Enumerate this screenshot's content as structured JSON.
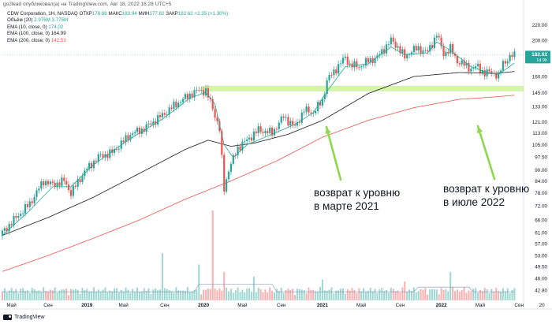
{
  "published": "go2lead опубликовал(а) на TradingView.com, Авг 18, 2022 16:28 UTC+5",
  "legend": {
    "title": "CDW Corporation, 1Н, NASDAQ",
    "ohlc": [
      {
        "k": "ОТКР",
        "v": "178.88"
      },
      {
        "k": "МАКС",
        "v": "183.94"
      },
      {
        "k": "МИН",
        "v": "177.82"
      },
      {
        "k": "ЗАКР",
        "v": "182.62"
      }
    ],
    "change": "+2.35 (+1.30%)",
    "volume": {
      "label": "Объём (20)",
      "v1": "2.976M",
      "v2": "3.775M"
    },
    "ema": [
      {
        "label": "EMA (10, close, 0)",
        "value": "174.02",
        "color": "#26a69a"
      },
      {
        "label": "EMA (100, close, 0)",
        "value": "164.99",
        "color": "#131722"
      },
      {
        "label": "EMA (200, close, 0)",
        "value": "142.53",
        "color": "#ef5350"
      }
    ]
  },
  "annotations": [
    {
      "text": "возврат к уровню\nв марте 2021"
    },
    {
      "text": "возврат к уровню\nв июле 2022"
    }
  ],
  "footer": "TradingView",
  "price_badge": {
    "price": "182.62",
    "sub": "1d 9h"
  },
  "colors": {
    "up": "#26a69a",
    "down": "#ef5350",
    "ema10": "#26a69a",
    "ema100": "#131722",
    "ema200": "#ef5350",
    "zone": "#ccf29a",
    "arrow": "#8ed84a",
    "volume": "#e8eef5"
  },
  "chart_data": {
    "type": "candlestick",
    "scale": "log",
    "ylim": [
      42.8,
      242
    ],
    "y_ticks": [
      "220.00",
      "200.00",
      "182.62",
      "160.00",
      "145.00",
      "133.00",
      "121.00",
      "113.00",
      "105.00",
      "97.50",
      "90.00",
      "84.00",
      "78.00",
      "72.00",
      "66.00",
      "61.00",
      "57.00",
      "53.00",
      "49.50",
      "46.00",
      "42.80"
    ],
    "x_ticks": [
      "Май",
      "Сен",
      "2019",
      "Май",
      "Сен",
      "2020",
      "Май",
      "Сен",
      "2021",
      "Май",
      "Сен",
      "2022",
      "Май",
      "Сен",
      "20"
    ],
    "x_range": [
      0,
      228
    ],
    "x_tick_weeks": [
      4,
      20,
      37,
      53,
      71,
      88,
      105,
      122,
      140,
      157,
      174,
      192,
      209,
      226,
      236
    ],
    "support_zone": {
      "low": 146,
      "high": 151,
      "from_week": 88,
      "to_week": 228
    },
    "close_anchors": [
      [
        0,
        61
      ],
      [
        4,
        65
      ],
      [
        12,
        73
      ],
      [
        18,
        84
      ],
      [
        22,
        82
      ],
      [
        27,
        84
      ],
      [
        30,
        78
      ],
      [
        36,
        89
      ],
      [
        42,
        97.5
      ],
      [
        48,
        100
      ],
      [
        56,
        112
      ],
      [
        62,
        116
      ],
      [
        70,
        126
      ],
      [
        76,
        135
      ],
      [
        82,
        143
      ],
      [
        86,
        147
      ],
      [
        89,
        146
      ],
      [
        92,
        132
      ],
      [
        95,
        115
      ],
      [
        97,
        80
      ],
      [
        99,
        90
      ],
      [
        103,
        103
      ],
      [
        107,
        108
      ],
      [
        112,
        115
      ],
      [
        118,
        113
      ],
      [
        123,
        125
      ],
      [
        128,
        117
      ],
      [
        132,
        130
      ],
      [
        136,
        128
      ],
      [
        140,
        138
      ],
      [
        142,
        156
      ],
      [
        146,
        168
      ],
      [
        150,
        180
      ],
      [
        152,
        172
      ],
      [
        156,
        170
      ],
      [
        160,
        176
      ],
      [
        164,
        180
      ],
      [
        167,
        190
      ],
      [
        170,
        200
      ],
      [
        173,
        192
      ],
      [
        176,
        180
      ],
      [
        179,
        188
      ],
      [
        182,
        190
      ],
      [
        186,
        186
      ],
      [
        188,
        196
      ],
      [
        190,
        208
      ],
      [
        193,
        184
      ],
      [
        196,
        190
      ],
      [
        199,
        176
      ],
      [
        202,
        172
      ],
      [
        205,
        168
      ],
      [
        208,
        170
      ],
      [
        211,
        163
      ],
      [
        214,
        165
      ],
      [
        217,
        160
      ],
      [
        219,
        174
      ],
      [
        222,
        180
      ],
      [
        224,
        182.62
      ]
    ],
    "ema10_anchors": [
      [
        0,
        60
      ],
      [
        12,
        70
      ],
      [
        22,
        81
      ],
      [
        30,
        81
      ],
      [
        40,
        93
      ],
      [
        56,
        109
      ],
      [
        70,
        123
      ],
      [
        82,
        140
      ],
      [
        89,
        145
      ],
      [
        93,
        135
      ],
      [
        97,
        105
      ],
      [
        101,
        97
      ],
      [
        107,
        105
      ],
      [
        118,
        112
      ],
      [
        128,
        119
      ],
      [
        136,
        128
      ],
      [
        142,
        146
      ],
      [
        150,
        170
      ],
      [
        160,
        173
      ],
      [
        170,
        192
      ],
      [
        176,
        183
      ],
      [
        186,
        185
      ],
      [
        190,
        198
      ],
      [
        196,
        188
      ],
      [
        205,
        170
      ],
      [
        211,
        165
      ],
      [
        217,
        162
      ],
      [
        224,
        174
      ]
    ],
    "ema100_anchors": [
      [
        0,
        60
      ],
      [
        20,
        67
      ],
      [
        40,
        76
      ],
      [
        60,
        88
      ],
      [
        80,
        102
      ],
      [
        90,
        108
      ],
      [
        100,
        104
      ],
      [
        110,
        106
      ],
      [
        125,
        112
      ],
      [
        140,
        122
      ],
      [
        160,
        144
      ],
      [
        180,
        160
      ],
      [
        200,
        164
      ],
      [
        215,
        163
      ],
      [
        224,
        165
      ]
    ],
    "ema200_anchors": [
      [
        0,
        48
      ],
      [
        20,
        53
      ],
      [
        40,
        59
      ],
      [
        60,
        66
      ],
      [
        80,
        75
      ],
      [
        100,
        84
      ],
      [
        120,
        95
      ],
      [
        140,
        110
      ],
      [
        160,
        122
      ],
      [
        180,
        132
      ],
      [
        200,
        139
      ],
      [
        215,
        141
      ],
      [
        224,
        142.53
      ]
    ],
    "volume_spikes": [
      [
        70,
        0.5
      ],
      [
        86,
        0.38
      ],
      [
        92,
        0.95
      ],
      [
        97,
        0.3
      ],
      [
        110,
        0.25
      ],
      [
        140,
        0.22
      ],
      [
        176,
        0.2
      ],
      [
        196,
        0.3
      ]
    ]
  }
}
